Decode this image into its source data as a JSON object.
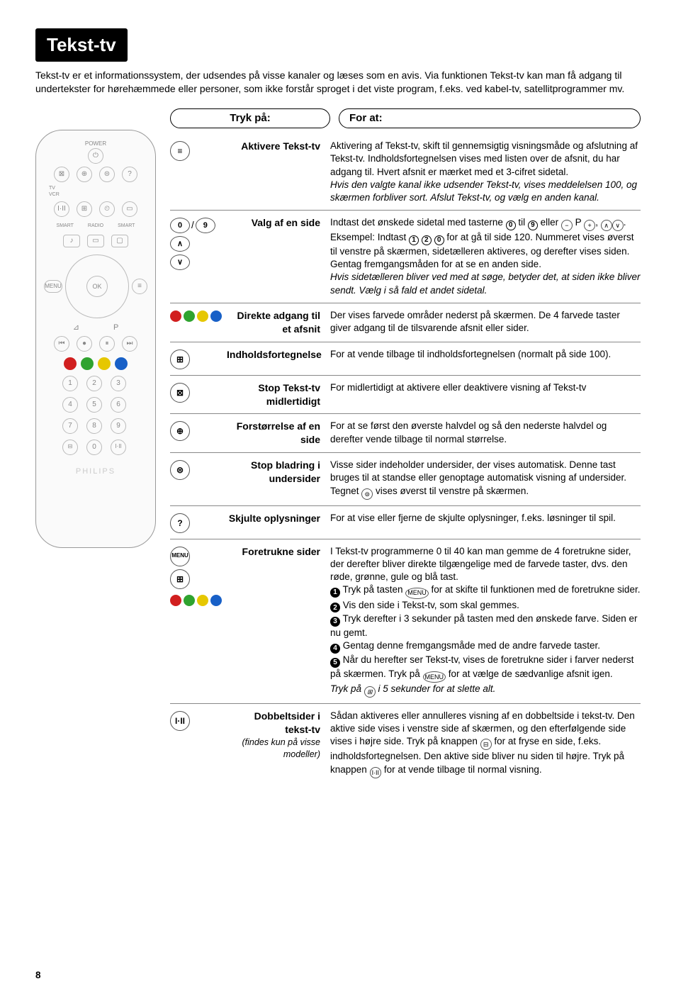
{
  "title": "Tekst-tv",
  "intro": "Tekst-tv er et informationssystem, der udsendes på visse kanaler og læses som en avis. Via funktionen Tekst-tv kan man få adgang til undertekster for hørehæmmede eller personer, som ikke forstår sproget i det viste program, f.eks. ved kabel-tv, satellitprogrammer mv.",
  "header_tryk": "Tryk på:",
  "header_for": "For at:",
  "colors": {
    "red": "#d11f1f",
    "green": "#2fa32f",
    "yellow": "#e6c700",
    "blue": "#1860c7"
  },
  "entries": [
    {
      "key_type": "single",
      "key_glyph": "≡",
      "label": "Aktivere Tekst-tv",
      "desc": "Aktivering af Tekst-tv, skift til gennemsigtig visningsmåde og afslutning af Tekst-tv. Indholdsfortegnelsen vises med listen over de afsnit, du har adgang til. Hvert afsnit er mærket med et 3-cifret sidetal.",
      "desc_it": "Hvis den valgte kanal ikke udsender Tekst-tv, vises meddelelsen 100, og skærmen forbliver sort. Afslut Tekst-tv, og vælg en anden kanal."
    },
    {
      "key_type": "numbers_arrows",
      "label": "Valg af en side",
      "desc_html": "Indtast det ønskede sidetal med tasterne <span class='circnum'>0</span> til <span class='circnum'>9</span> eller <span class='inline-btn'>−</span> P <span class='inline-btn'>+</span>, <span class='inline-btn'>∧</span><span class='inline-btn'>∨</span>. Eksempel: Indtast <span class='circnum'>1</span> <span class='circnum'>2</span> <span class='circnum'>0</span> for at gå til side 120. Nummeret vises øverst til venstre på skærmen, sidetælleren aktiveres, og derefter vises siden. Gentag fremgangsmåden for at se en anden side.",
      "desc_it": "Hvis sidetælleren bliver ved med at søge, betyder det, at siden ikke bliver sendt. Vælg i så fald et andet sidetal."
    },
    {
      "key_type": "colordots",
      "label": "Direkte adgang til et afsnit",
      "desc": "Der vises farvede områder nederst på skærmen. De 4 farvede taster giver adgang til de tilsvarende afsnit eller sider."
    },
    {
      "key_type": "single",
      "key_glyph": "⊞",
      "label": "Indholdsfortegnelse",
      "desc": "For at vende tilbage til indholdsfortegnelsen (normalt på side 100)."
    },
    {
      "key_type": "single",
      "key_glyph": "⊠",
      "label": "Stop Tekst-tv midlertidigt",
      "desc": "For midlertidigt at aktivere eller deaktivere visning af Tekst-tv"
    },
    {
      "key_type": "single",
      "key_glyph": "⊕",
      "label": "Forstørrelse af en side",
      "desc": "For at se først den øverste halvdel og så den nederste halvdel og derefter vende tilbage til normal størrelse."
    },
    {
      "key_type": "single",
      "key_glyph": "⊜",
      "label": "Stop bladring i undersider",
      "desc_html": "Visse sider indeholder undersider, der vises automatisk. Denne tast bruges til at standse eller genoptage automatisk visning af undersider. Tegnet <span class='inline-btn'>⊜</span> vises øverst til venstre på skærmen."
    },
    {
      "key_type": "single",
      "key_glyph": "?",
      "label": "Skjulte oplysninger",
      "desc": "For at vise eller fjerne de skjulte oplysninger, f.eks. løsninger til spil."
    },
    {
      "key_type": "menu_dots",
      "label": "Foretrukne sider",
      "desc_html": "I Tekst-tv programmerne 0 til 40 kan man gemme de 4 foretrukne sider, der derefter bliver direkte tilgængelige med de farvede taster, dvs. den røde, grønne, gule og blå tast.<br><span class='circnum filled'>1</span> Tryk på tasten <span class='inline-btn'>MENU</span> for at skifte til funktionen med de foretrukne sider.<br><span class='circnum filled'>2</span> Vis den side i Tekst-tv, som skal gemmes.<br><span class='circnum filled'>3</span> Tryk derefter i 3 sekunder på tasten med den ønskede farve. Siden er nu gemt.<br><span class='circnum filled'>4</span> Gentag denne fremgangsmåde med de andre farvede taster.<br><span class='circnum filled'>5</span> Når du herefter ser Tekst-tv, vises de foretrukne sider i farver nederst på skærmen. Tryk på <span class='inline-btn'>MENU</span> for at vælge de sædvanlige afsnit igen.",
      "desc_it_html": "Tryk på <span class='inline-btn'>⊞</span> i 5 sekunder for at slette alt."
    },
    {
      "key_type": "single",
      "key_glyph": "I·II",
      "label": "Dobbeltsider i tekst-tv",
      "label_sub": "(findes kun på visse modeller)",
      "desc_html": "Sådan aktiveres eller annulleres visning af en dobbeltside i tekst-tv. Den aktive side vises i venstre side af skærmen, og den efterfølgende side vises i højre side. Tryk på knappen <span class='inline-btn'>⊟</span> for at fryse en side, f.eks. indholdsfortegnelsen. Den aktive side bliver nu siden til højre. Tryk på knappen <span class='inline-btn'>I·II</span> for at vende tilbage til normal visning."
    }
  ],
  "page_number": "8",
  "remote_brand": "PHILIPS"
}
